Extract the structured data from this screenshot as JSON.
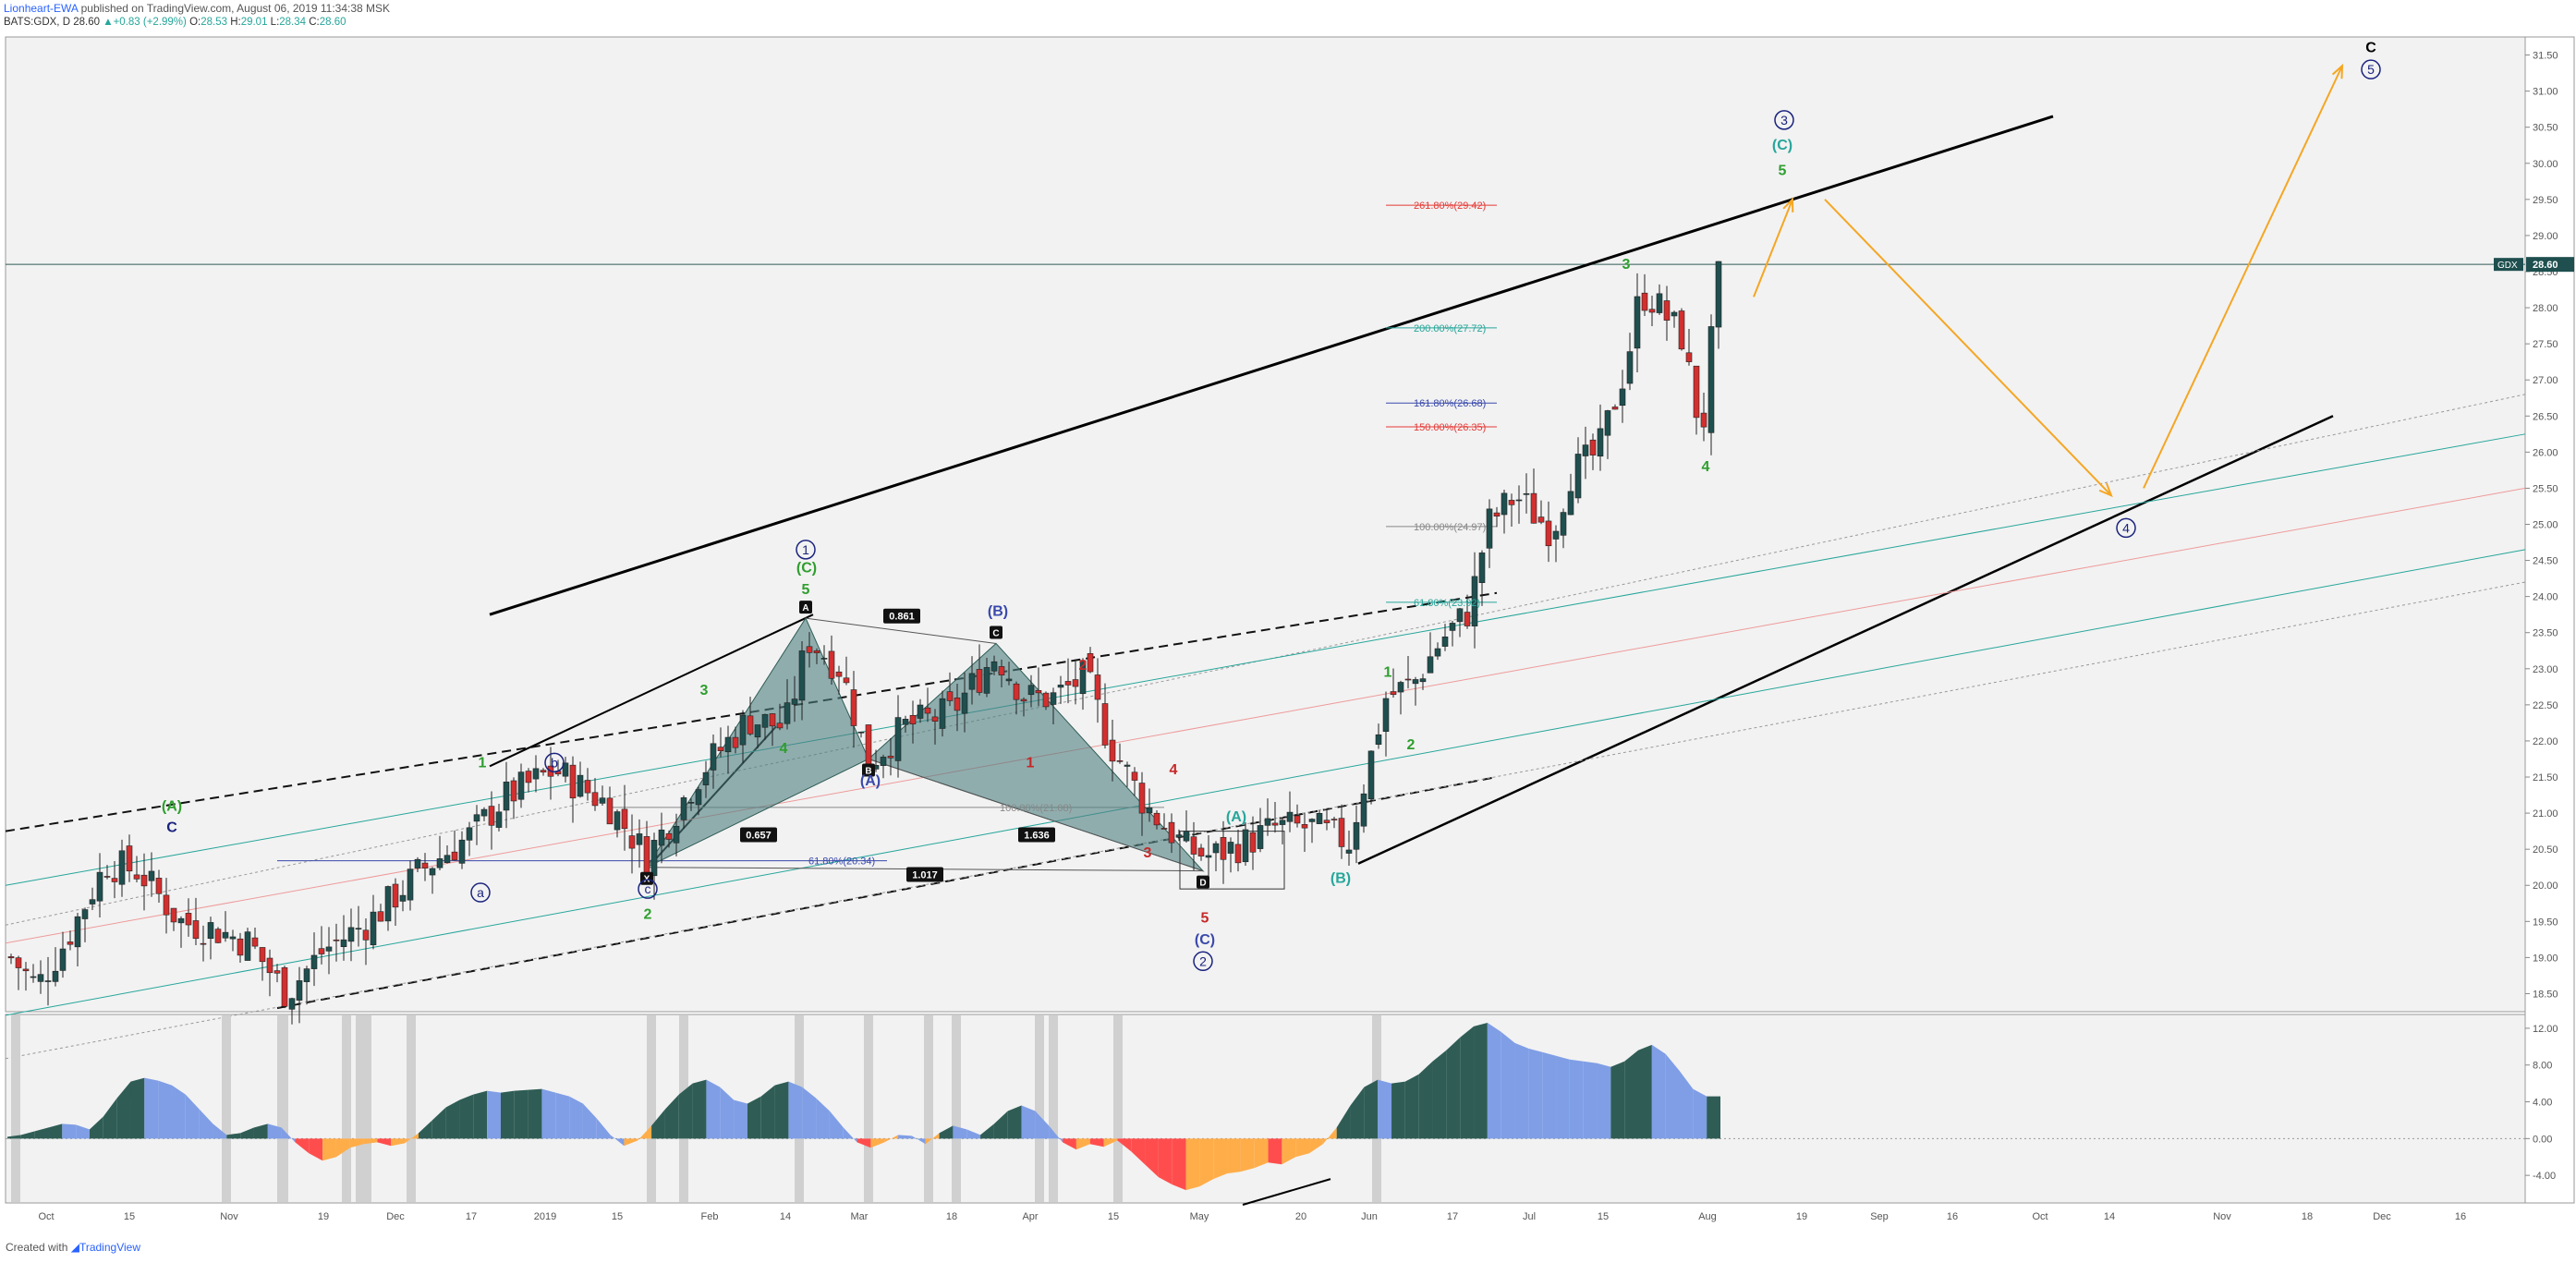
{
  "header": {
    "author": "Lionheart-EWA",
    "published": " published on TradingView.com, August 06, 2019 11:34:38 MSK",
    "symbol": "BATS:GDX, D",
    "last": "28.60",
    "change": "+0.83 (+2.99%)",
    "open_label": "O:",
    "open": "28.53",
    "high_label": "H:",
    "high": "29.01",
    "low_label": "L:",
    "low": "28.34",
    "close_label": "C:",
    "close": "28.60"
  },
  "footer": {
    "created_with": "Created with",
    "brand": "TradingView"
  },
  "colors": {
    "up": "#26a69a",
    "down": "#ef5350",
    "ao_dark": "#2f5d55",
    "ao_light": "#7f9ee6",
    "ao_red": "#f44",
    "ao_orange": "#ffad49",
    "elliott_orange": "#f5a623"
  },
  "chart_data": [
    {
      "type": "candlestick",
      "symbol": "GDX",
      "ylim": [
        18.25,
        31.75
      ],
      "price_ticks": [
        "31.50",
        "31.00",
        "30.50",
        "30.00",
        "29.50",
        "29.00",
        "28.50",
        "28.00",
        "27.50",
        "27.00",
        "26.50",
        "26.00",
        "25.50",
        "25.00",
        "24.50",
        "24.00",
        "23.50",
        "23.00",
        "22.50",
        "22.00",
        "21.50",
        "21.00",
        "20.50",
        "20.00",
        "19.50",
        "19.00",
        "18.50"
      ],
      "last_price_label": "GDX",
      "last_price": "28.60",
      "x_ticks": [
        "Oct",
        "15",
        "Nov",
        "19",
        "Dec",
        "17",
        "2019",
        "15",
        "Feb",
        "14",
        "Mar",
        "18",
        "Apr",
        "15",
        "May",
        "20",
        "Jun",
        "17",
        "Jul",
        "15",
        "Aug",
        "19",
        "Sep",
        "16",
        "Oct",
        "14",
        "Nov",
        "18",
        "Dec",
        "16"
      ],
      "fib_levels": [
        {
          "label": "261.80%(29.42)",
          "value": 29.42,
          "color": "#e53935"
        },
        {
          "label": "200.00%(27.72)",
          "value": 27.72,
          "color": "#26a69a"
        },
        {
          "label": "161.80%(26.68)",
          "value": 26.68,
          "color": "#3949ab"
        },
        {
          "label": "150.00%(26.35)",
          "value": 26.35,
          "color": "#e53935"
        },
        {
          "label": "100.00%(24.97)",
          "value": 24.97,
          "color": "#888888"
        },
        {
          "label": "61.80%(23.92)",
          "value": 23.92,
          "color": "#26a69a"
        },
        {
          "label": "61.80%(20.34)",
          "value": 20.34,
          "color": "#3949ab"
        },
        {
          "label": "100.00%(21.08)",
          "value": 21.08,
          "color": "#888888"
        }
      ],
      "harmonic_ratios": [
        "0.861",
        "0.657",
        "1.636",
        "1.017"
      ],
      "pattern_points": [
        "X",
        "A",
        "B",
        "C",
        "D"
      ],
      "wave_labels": [
        "(A)",
        "C",
        "1",
        "b",
        "a",
        "3",
        "4",
        "2",
        "c",
        "5",
        "(C)",
        "1",
        "(B)",
        "(A)",
        "2",
        "1",
        "3",
        "4",
        "5",
        "(C)",
        "2",
        "(A)",
        "(B)",
        "1",
        "2",
        "3",
        "4",
        "5",
        "(C)",
        "3",
        "C",
        "5",
        "4"
      ]
    },
    {
      "type": "area",
      "name": "oscillator",
      "ylim": [
        -7.0,
        13.5
      ],
      "ticks": [
        "12.00",
        "8.00",
        "4.00",
        "0.00",
        "-4.00"
      ],
      "values": [
        0.2,
        0.4,
        0.8,
        1.2,
        1.6,
        1.5,
        1.0,
        2.4,
        4.4,
        6.2,
        6.6,
        6.3,
        5.8,
        4.8,
        3.2,
        1.6,
        0.4,
        0.6,
        1.2,
        1.6,
        1.2,
        -0.4,
        -1.6,
        -2.4,
        -2.0,
        -1.0,
        -0.6,
        -0.4,
        -0.8,
        -0.5,
        0.6,
        2.0,
        3.4,
        4.2,
        4.8,
        5.2,
        5.0,
        5.2,
        5.3,
        5.4,
        5.0,
        4.6,
        3.8,
        2.2,
        0.4,
        -0.8,
        -0.2,
        1.4,
        3.2,
        4.8,
        6.0,
        6.4,
        5.6,
        4.2,
        3.8,
        4.6,
        5.8,
        6.2,
        5.6,
        4.4,
        3.0,
        1.2,
        -0.4,
        -1.0,
        -0.4,
        0.4,
        0.3,
        -0.6,
        0.6,
        1.4,
        1.0,
        0.4,
        1.6,
        3.0,
        3.6,
        3.0,
        1.4,
        -0.4,
        -1.2,
        -0.6,
        -0.9,
        -0.2,
        -1.4,
        -2.8,
        -4.2,
        -5.0,
        -5.6,
        -5.2,
        -4.4,
        -3.8,
        -3.6,
        -3.2,
        -2.6,
        -2.8,
        -2.0,
        -1.6,
        -0.6,
        1.2,
        3.6,
        5.6,
        6.4,
        6.0,
        6.2,
        7.0,
        8.4,
        9.6,
        11.0,
        12.2,
        12.6,
        11.6,
        10.4,
        9.8,
        9.4,
        9.0,
        8.6,
        8.4,
        8.2,
        7.8,
        8.4,
        9.6,
        10.2,
        9.2,
        7.4,
        5.4,
        4.6,
        4.6
      ]
    }
  ]
}
